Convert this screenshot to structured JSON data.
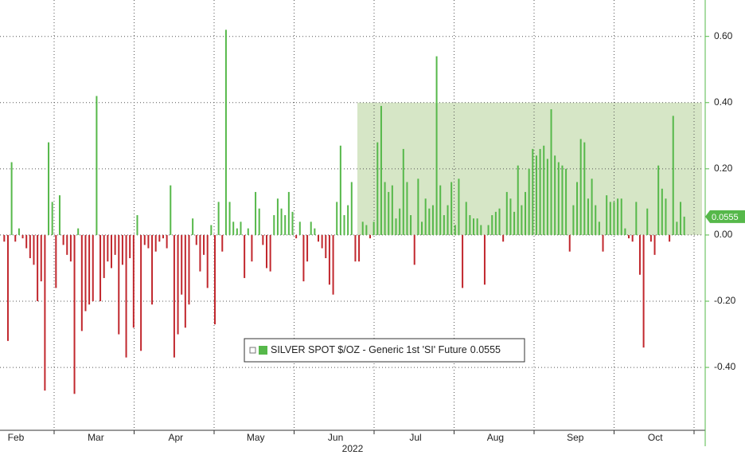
{
  "chart_data": {
    "type": "bar",
    "series": [
      {
        "name": "SILVER SPOT $/OZ - Generic 1st 'SI' Future",
        "pos_color": "#56b84a",
        "neg_color": "#c1272d",
        "values": [
          -0.02,
          -0.32,
          0.22,
          -0.02,
          0.02,
          -0.01,
          -0.04,
          -0.07,
          -0.09,
          -0.2,
          -0.14,
          -0.47,
          0.28,
          0.1,
          -0.16,
          0.12,
          -0.03,
          -0.06,
          -0.08,
          -0.48,
          0.02,
          -0.29,
          -0.23,
          -0.21,
          -0.2,
          0.42,
          -0.2,
          -0.13,
          -0.08,
          -0.1,
          -0.06,
          -0.3,
          -0.09,
          -0.37,
          -0.07,
          -0.28,
          0.06,
          -0.35,
          -0.03,
          -0.04,
          -0.21,
          -0.05,
          -0.02,
          -0.01,
          -0.04,
          0.15,
          -0.37,
          -0.3,
          -0.18,
          -0.28,
          -0.21,
          0.05,
          -0.03,
          -0.11,
          -0.06,
          -0.16,
          0.03,
          -0.27,
          0.1,
          -0.05,
          0.62,
          0.1,
          0.04,
          0.02,
          0.04,
          -0.13,
          0.02,
          -0.08,
          0.13,
          0.08,
          -0.03,
          -0.1,
          -0.11,
          0.06,
          0.11,
          0.08,
          0.06,
          0.13,
          0.07,
          -0.01,
          0.04,
          -0.14,
          -0.08,
          0.04,
          0.02,
          -0.02,
          -0.04,
          -0.07,
          -0.15,
          -0.18,
          0.1,
          0.27,
          0.06,
          0.09,
          0.16,
          -0.08,
          -0.08,
          0.04,
          0.03,
          -0.01,
          0.04,
          0.28,
          0.39,
          0.16,
          0.13,
          0.15,
          0.05,
          0.08,
          0.26,
          0.16,
          0.06,
          -0.09,
          0.17,
          0.04,
          0.11,
          0.08,
          0.09,
          0.54,
          0.15,
          0.06,
          0.09,
          0.16,
          0.03,
          0.17,
          -0.16,
          0.1,
          0.06,
          0.05,
          0.05,
          0.03,
          -0.15,
          0.03,
          0.06,
          0.07,
          0.08,
          -0.02,
          0.13,
          0.11,
          0.07,
          0.21,
          0.09,
          0.13,
          0.2,
          0.26,
          0.24,
          0.26,
          0.27,
          0.23,
          0.38,
          0.24,
          0.22,
          0.21,
          0.2,
          -0.05,
          0.09,
          0.16,
          0.29,
          0.28,
          0.11,
          0.17,
          0.09,
          0.04,
          -0.05,
          0.12,
          0.1,
          0.1,
          0.11,
          0.11,
          0.02,
          -0.01,
          -0.02,
          0.1,
          -0.12,
          -0.34,
          0.08,
          -0.02,
          -0.06,
          0.21,
          0.14,
          0.11,
          -0.02,
          0.36,
          0.04,
          0.1,
          0.0555
        ]
      }
    ],
    "ylim": [
      -0.59,
      0.71
    ],
    "yticks": [
      {
        "value": -0.4,
        "label": "-0.40"
      },
      {
        "value": -0.2,
        "label": "-0.20"
      },
      {
        "value": 0,
        "label": "0.00"
      },
      {
        "value": 0.2,
        "label": "0.20"
      },
      {
        "value": 0.4,
        "label": "0.40"
      },
      {
        "value": 0.6,
        "label": "0.60"
      }
    ],
    "highlight_range": [
      0,
      0.4
    ],
    "highlight_color": "#d6e6c6",
    "month_labels": [
      "Feb",
      "Mar",
      "Apr",
      "May",
      "Jun",
      "Jul",
      "Aug",
      "Sep",
      "Oct"
    ],
    "year_label": "2022",
    "last_value_label": "0.0555",
    "grid": true
  }
}
